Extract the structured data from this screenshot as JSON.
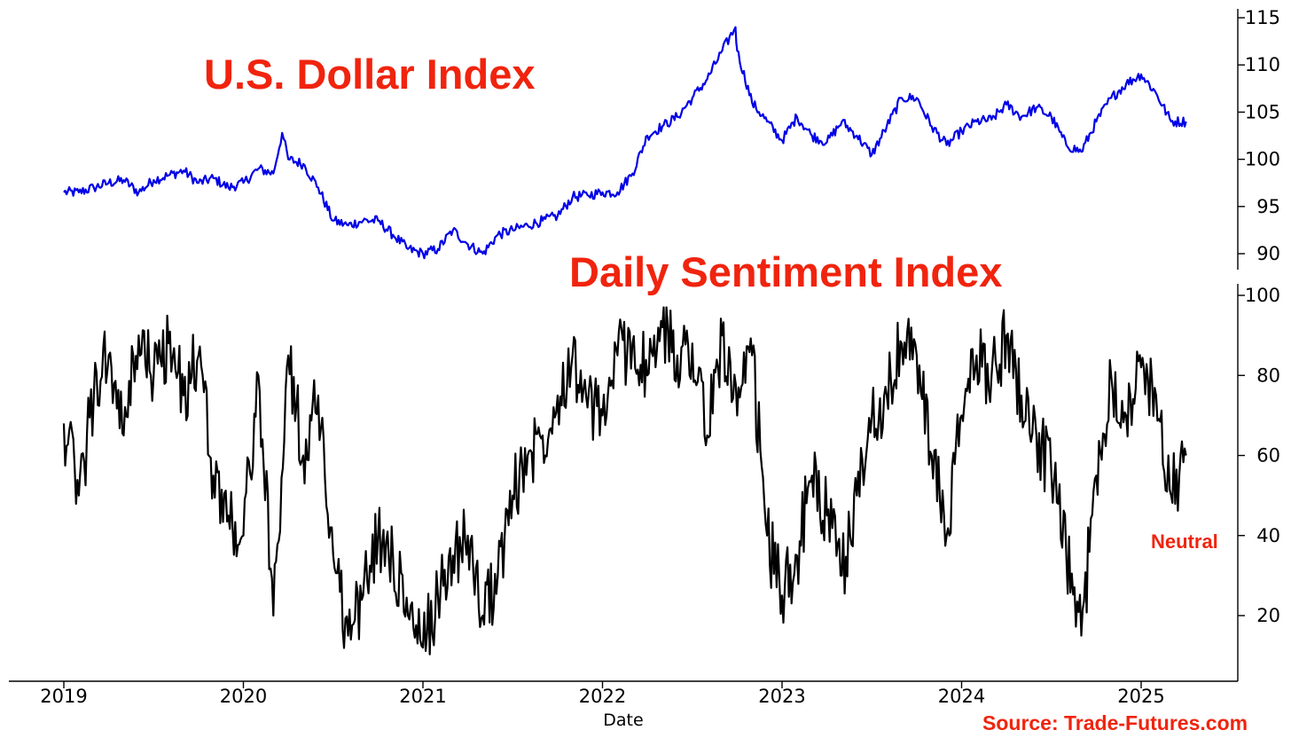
{
  "chart_data": [
    {
      "type": "line",
      "title": "U.S. Dollar Index",
      "xlabel": "Date",
      "ylabel": "",
      "ylim": [
        88,
        115
      ],
      "yticks": [
        "115",
        "110",
        "105",
        "100",
        "95",
        "90"
      ],
      "series": [
        {
          "color": "#0000e6",
          "x": [
            "2019-01",
            "2019-02",
            "2019-03",
            "2019-04",
            "2019-05",
            "2019-06",
            "2019-07",
            "2019-08",
            "2019-09",
            "2019-10",
            "2019-11",
            "2019-12",
            "2020-01",
            "2020-02",
            "2020-03",
            "2020-03-19",
            "2020-04",
            "2020-05",
            "2020-06",
            "2020-07",
            "2020-08",
            "2020-09",
            "2020-10",
            "2020-11",
            "2020-12",
            "2021-01",
            "2021-02",
            "2021-03",
            "2021-04",
            "2021-05",
            "2021-06",
            "2021-07",
            "2021-08",
            "2021-09",
            "2021-10",
            "2021-11",
            "2021-12",
            "2022-01",
            "2022-02",
            "2022-03",
            "2022-04",
            "2022-05",
            "2022-06",
            "2022-07",
            "2022-08",
            "2022-09",
            "2022-09-28",
            "2022-10",
            "2022-11",
            "2022-12",
            "2023-01",
            "2023-02",
            "2023-03",
            "2023-04",
            "2023-05",
            "2023-06",
            "2023-07",
            "2023-08",
            "2023-09",
            "2023-10",
            "2023-11",
            "2023-12",
            "2024-01",
            "2024-02",
            "2024-03",
            "2024-04",
            "2024-05",
            "2024-06",
            "2024-07",
            "2024-08",
            "2024-09",
            "2024-10",
            "2024-11",
            "2024-12",
            "2025-01",
            "2025-02",
            "2025-03",
            "2025-04"
          ],
          "values": [
            96.5,
            96.5,
            97.0,
            97.5,
            97.8,
            96.5,
            97.8,
            98.3,
            98.8,
            97.5,
            98.0,
            97.0,
            97.5,
            99.0,
            98.5,
            102.8,
            100.0,
            99.5,
            97.0,
            93.5,
            93.0,
            93.5,
            93.5,
            92.0,
            90.5,
            90.0,
            90.5,
            92.5,
            91.0,
            90.0,
            92.0,
            92.5,
            93.0,
            93.5,
            94.0,
            96.0,
            96.2,
            96.5,
            96.5,
            98.5,
            102.5,
            103.5,
            104.5,
            106.5,
            108.5,
            111.5,
            114.0,
            111.5,
            106.0,
            104.0,
            102.0,
            104.5,
            102.5,
            101.8,
            104.0,
            102.5,
            100.5,
            103.5,
            106.5,
            106.5,
            103.5,
            101.5,
            103.0,
            104.0,
            104.2,
            105.8,
            104.5,
            105.5,
            104.5,
            101.5,
            100.8,
            104.0,
            106.5,
            108.0,
            109.0,
            107.0,
            104.0,
            104.0
          ]
        }
      ]
    },
    {
      "type": "line",
      "title": "Daily Sentiment Index",
      "xlabel": "Date",
      "ylabel": "",
      "ylim": [
        5,
        100
      ],
      "yticks": [
        "100",
        "80",
        "60",
        "40",
        "20"
      ],
      "annotation": "Neutral",
      "series": [
        {
          "color": "#000000",
          "x": [
            "2019-01",
            "2019-02",
            "2019-03",
            "2019-04",
            "2019-05",
            "2019-06",
            "2019-07",
            "2019-08",
            "2019-09",
            "2019-10",
            "2019-11",
            "2019-12",
            "2020-01",
            "2020-02",
            "2020-03",
            "2020-04",
            "2020-05",
            "2020-06",
            "2020-07",
            "2020-08",
            "2020-09",
            "2020-10",
            "2020-11",
            "2020-12",
            "2021-01",
            "2021-02",
            "2021-03",
            "2021-04",
            "2021-05",
            "2021-06",
            "2021-07",
            "2021-08",
            "2021-09",
            "2021-10",
            "2021-11",
            "2021-12",
            "2022-01",
            "2022-02",
            "2022-03",
            "2022-04",
            "2022-05",
            "2022-06",
            "2022-07",
            "2022-08",
            "2022-09",
            "2022-10",
            "2022-11",
            "2022-12",
            "2023-01",
            "2023-02",
            "2023-03",
            "2023-04",
            "2023-05",
            "2023-06",
            "2023-07",
            "2023-08",
            "2023-09",
            "2023-10",
            "2023-11",
            "2023-12",
            "2024-01",
            "2024-02",
            "2024-03",
            "2024-04",
            "2024-05",
            "2024-06",
            "2024-07",
            "2024-08",
            "2024-09",
            "2024-10",
            "2024-11",
            "2024-12",
            "2025-01",
            "2025-02",
            "2025-03",
            "2025-04"
          ],
          "values": [
            68,
            50,
            75,
            85,
            65,
            90,
            80,
            88,
            75,
            85,
            55,
            45,
            40,
            80,
            20,
            85,
            60,
            75,
            35,
            15,
            25,
            40,
            35,
            20,
            12,
            25,
            35,
            40,
            20,
            30,
            50,
            60,
            65,
            75,
            85,
            72,
            70,
            85,
            88,
            80,
            92,
            85,
            88,
            65,
            90,
            70,
            85,
            40,
            25,
            35,
            55,
            45,
            30,
            50,
            70,
            75,
            88,
            85,
            60,
            40,
            70,
            85,
            80,
            90,
            75,
            65,
            55,
            35,
            15,
            55,
            80,
            70,
            82,
            75,
            50,
            60
          ]
        }
      ]
    }
  ],
  "x_ticks": [
    "2019",
    "2020",
    "2021",
    "2022",
    "2023",
    "2024",
    "2025"
  ],
  "title_color": "#f0240e",
  "source": "Source: Trade-Futures.com"
}
